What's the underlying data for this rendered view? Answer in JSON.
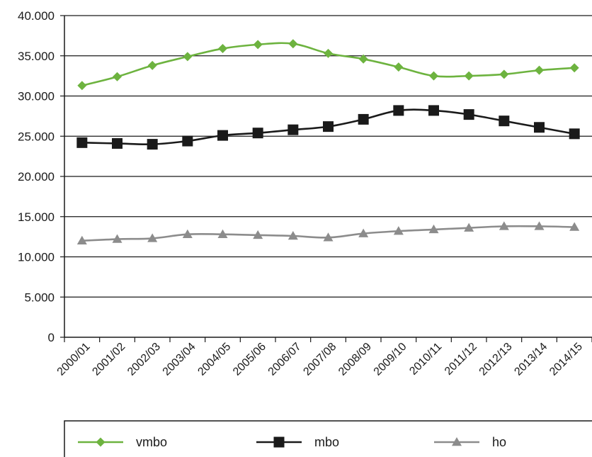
{
  "chart_data": {
    "type": "line",
    "categories": [
      "2000/01",
      "2001/02",
      "2002/03",
      "2003/04",
      "2004/05",
      "2005/06",
      "2006/07",
      "2007/08",
      "2008/09",
      "2009/10",
      "2010/11",
      "2011/12",
      "2012/13",
      "2013/14",
      "2014/15"
    ],
    "y_ticks": [
      "0",
      "5.000",
      "10.000",
      "15.000",
      "20.000",
      "25.000",
      "30.000",
      "35.000",
      "40.000"
    ],
    "ylim": [
      0,
      40000
    ],
    "grid": "horizontal",
    "legend_position": "bottom",
    "series": [
      {
        "name": "vmbo",
        "color": "#6db33f",
        "marker": "diamond",
        "values": [
          31300,
          32400,
          33800,
          34900,
          35900,
          36400,
          36500,
          35300,
          34600,
          33600,
          32500,
          32500,
          32700,
          33200,
          33500
        ]
      },
      {
        "name": "mbo",
        "color": "#1a1a1a",
        "marker": "square",
        "values": [
          24200,
          24100,
          24000,
          24400,
          25100,
          25400,
          25800,
          26200,
          27100,
          28200,
          28200,
          27700,
          26900,
          26100,
          25300
        ]
      },
      {
        "name": "ho",
        "color": "#8c8c8c",
        "marker": "triangle",
        "values": [
          12000,
          12200,
          12300,
          12800,
          12800,
          12700,
          12600,
          12400,
          12900,
          13200,
          13400,
          13600,
          13800,
          13800,
          13700
        ]
      }
    ]
  }
}
